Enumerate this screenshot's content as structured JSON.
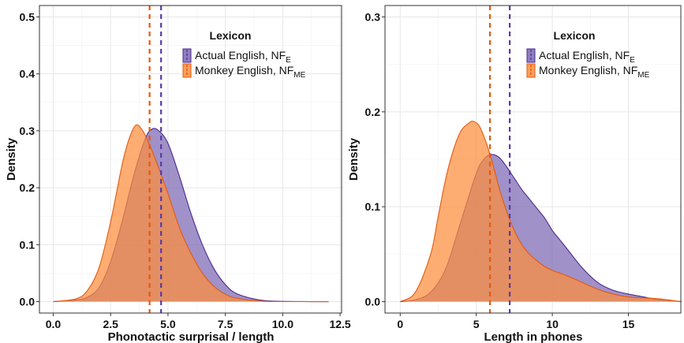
{
  "colors": {
    "actual": "#7b67b3",
    "actual_line": "#4b2a8f",
    "monkey": "#fd8d3c",
    "monkey_line": "#e4590d",
    "mean_actual": "#5b3aa6",
    "mean_monkey": "#e4590d"
  },
  "chart_data": [
    {
      "type": "area",
      "xlabel": "Phonotactic surprisal / length",
      "ylabel": "Density",
      "xlim": [
        -0.6,
        12.6
      ],
      "ylim": [
        -0.02,
        0.52
      ],
      "xticks": [
        0,
        2.5,
        5,
        7.5,
        10,
        12.5
      ],
      "xtick_labels": [
        "0.0",
        "2.5",
        "5.0",
        "7.5",
        "10.0",
        "12.5"
      ],
      "yticks": [
        0,
        0.1,
        0.2,
        0.3,
        0.4,
        0.5
      ],
      "ytick_labels": [
        "0.0",
        "0.1",
        "0.2",
        "0.3",
        "0.4",
        "0.5"
      ],
      "grid": true,
      "legend": {
        "title": "Lexicon",
        "position": "top-right",
        "entries": [
          {
            "label": "Actual English, NF",
            "sub": "E"
          },
          {
            "label": "Monkey English, NF",
            "sub": "ME"
          }
        ]
      },
      "series": [
        {
          "name": "Actual English, NF_E",
          "x": [
            0,
            1,
            1.5,
            2,
            2.5,
            3,
            3.5,
            4,
            4.3,
            4.6,
            5,
            5.5,
            6,
            6.5,
            7,
            7.5,
            8,
            9,
            10,
            12
          ],
          "y": [
            0,
            0.003,
            0.008,
            0.025,
            0.07,
            0.14,
            0.22,
            0.285,
            0.303,
            0.3,
            0.278,
            0.22,
            0.155,
            0.1,
            0.058,
            0.03,
            0.014,
            0.003,
            0.0005,
            0
          ]
        },
        {
          "name": "Monkey English, NF_ME",
          "x": [
            0,
            1,
            1.5,
            2,
            2.5,
            3,
            3.3,
            3.6,
            3.9,
            4.2,
            4.5,
            5,
            5.5,
            6,
            6.5,
            7,
            7.5,
            8,
            9,
            10,
            12
          ],
          "y": [
            0,
            0.005,
            0.02,
            0.06,
            0.14,
            0.24,
            0.285,
            0.31,
            0.3,
            0.275,
            0.245,
            0.19,
            0.13,
            0.085,
            0.05,
            0.027,
            0.013,
            0.006,
            0.001,
            0.0002,
            0
          ]
        }
      ],
      "mean_lines": [
        {
          "series": "Actual English, NF_E",
          "x": 4.7
        },
        {
          "series": "Monkey English, NF_ME",
          "x": 4.2
        }
      ]
    },
    {
      "type": "area",
      "xlabel": "Length in phones",
      "ylabel": "Density",
      "xlim": [
        -1.0,
        18.5
      ],
      "ylim": [
        -0.012,
        0.312
      ],
      "xticks": [
        0,
        5,
        10,
        15
      ],
      "xtick_labels": [
        "0",
        "5",
        "10",
        "15"
      ],
      "yticks": [
        0,
        0.1,
        0.2,
        0.3
      ],
      "ytick_labels": [
        "0.0",
        "0.1",
        "0.2",
        "0.3"
      ],
      "grid": true,
      "legend": {
        "title": "Lexicon",
        "position": "top-right",
        "entries": [
          {
            "label": "Actual English, NF",
            "sub": "E"
          },
          {
            "label": "Monkey English, NF",
            "sub": "ME"
          }
        ]
      },
      "series": [
        {
          "name": "Actual English, NF_E",
          "x": [
            0,
            1,
            2,
            3,
            4,
            5,
            5.5,
            6,
            6.5,
            7,
            7.5,
            8,
            8.5,
            9,
            9.5,
            10,
            10.5,
            11,
            12,
            13,
            14,
            15,
            16,
            17,
            18.5
          ],
          "y": [
            0,
            0.002,
            0.01,
            0.035,
            0.085,
            0.135,
            0.15,
            0.155,
            0.152,
            0.142,
            0.13,
            0.118,
            0.108,
            0.098,
            0.088,
            0.075,
            0.065,
            0.055,
            0.035,
            0.02,
            0.012,
            0.008,
            0.005,
            0.002,
            0
          ]
        },
        {
          "name": "Monkey English, NF_ME",
          "x": [
            0,
            1,
            2,
            2.5,
            3,
            3.5,
            4,
            4.5,
            4.8,
            5.2,
            5.6,
            6,
            6.5,
            7,
            7.5,
            8,
            8.5,
            9,
            9.5,
            10,
            10.5,
            11,
            12,
            13,
            14,
            15,
            16,
            17,
            18.5
          ],
          "y": [
            0,
            0.01,
            0.05,
            0.09,
            0.13,
            0.16,
            0.18,
            0.188,
            0.19,
            0.185,
            0.17,
            0.15,
            0.12,
            0.095,
            0.075,
            0.06,
            0.05,
            0.043,
            0.037,
            0.033,
            0.03,
            0.027,
            0.02,
            0.013,
            0.008,
            0.005,
            0.004,
            0.003,
            0
          ]
        }
      ],
      "mean_lines": [
        {
          "series": "Actual English, NF_E",
          "x": 7.2
        },
        {
          "series": "Monkey English, NF_ME",
          "x": 5.9
        }
      ]
    }
  ]
}
